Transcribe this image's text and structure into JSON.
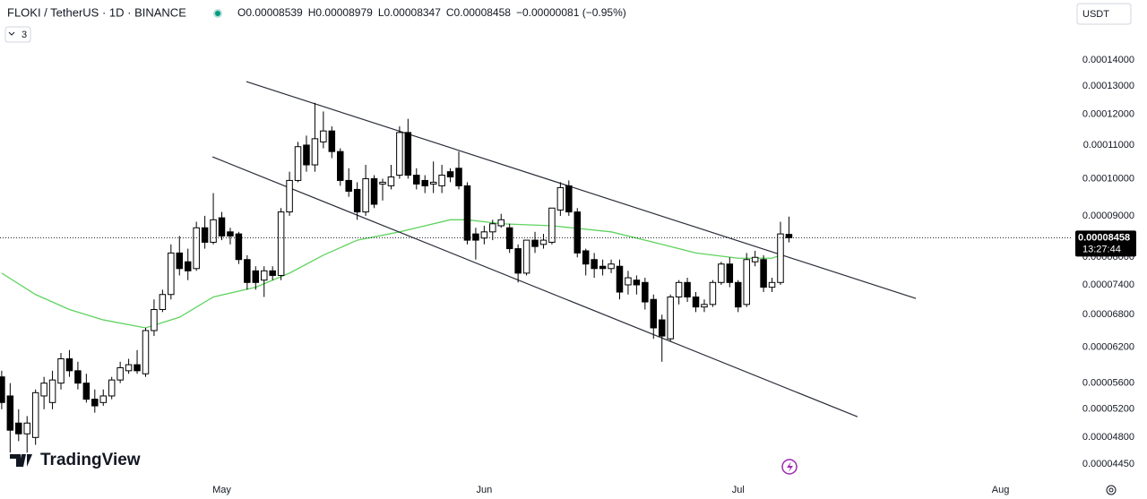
{
  "chart_data": {
    "type": "candlestick",
    "title": "FLOKI / TetherUS · 1D · BINANCE",
    "ohlc_text": [
      "O0.00008539",
      "H0.00008979",
      "L0.00008347",
      "C0.00008458"
    ],
    "change_text": "−0.00000081 (−0.95%)",
    "indicator_count": "3",
    "currency": "USDT",
    "brand": "TradingView",
    "price_label": "0.00008458",
    "countdown": "13:27:44",
    "log_scale": true,
    "grid": false,
    "up_color": "#ffffff",
    "down_color": "#000000",
    "xlim": [
      -0.2,
      126.3
    ],
    "ylim": [
      4.263e-05,
      0.000166
    ],
    "xticks": [
      {
        "value": 26,
        "label": "May"
      },
      {
        "value": 57,
        "label": "Jun"
      },
      {
        "value": 87,
        "label": "Jul"
      },
      {
        "value": 118,
        "label": "Aug"
      }
    ],
    "yticks": [
      {
        "value": 0.00014,
        "label": "0.00014000"
      },
      {
        "value": 0.00013,
        "label": "0.00013000"
      },
      {
        "value": 0.00012,
        "label": "0.00012000"
      },
      {
        "value": 0.00011,
        "label": "0.00011000"
      },
      {
        "value": 0.0001,
        "label": "0.00010000"
      },
      {
        "value": 9e-05,
        "label": "0.00009000"
      },
      {
        "value": 8e-05,
        "label": "0.00008000"
      },
      {
        "value": 7.4e-05,
        "label": "0.00007400"
      },
      {
        "value": 6.8e-05,
        "label": "0.00006800"
      },
      {
        "value": 6.2e-05,
        "label": "0.00006200"
      },
      {
        "value": 5.6e-05,
        "label": "0.00005600"
      },
      {
        "value": 5.2e-05,
        "label": "0.00005200"
      },
      {
        "value": 4.8e-05,
        "label": "0.00004800"
      },
      {
        "value": 4.45e-05,
        "label": "0.00004450"
      }
    ],
    "open": [
      5.7e-05,
      5.4e-05,
      5e-05,
      4.85e-05,
      4.8e-05,
      5.4e-05,
      5.3e-05,
      5.6e-05,
      6e-05,
      5.8e-05,
      5.6e-05,
      5.35e-05,
      5.3e-05,
      5.4e-05,
      5.65e-05,
      5.8e-05,
      5.9e-05,
      5.75e-05,
      6.5e-05,
      6.9e-05,
      7.2e-05,
      8.1e-05,
      7.9e-05,
      7.75e-05,
      8.7e-05,
      8.35e-05,
      8.95e-05,
      8.6e-05,
      8.55e-05,
      7.95e-05,
      7.7e-05,
      7.5e-05,
      7.7e-05,
      7.6e-05,
      9.1e-05,
      9.95e-05,
      0.00011,
      0.000104,
      0.000111,
      0.0001145,
      0.000108,
      9.95e-05,
      9.7e-05,
      9.1e-05,
      0.0001,
      9.85e-05,
      9.8e-05,
      0.000101,
      0.000114,
      0.000101,
      9.95e-05,
      9.85e-05,
      9.8e-05,
      0.000102,
      0.000103,
      9.8e-05,
      8.55e-05,
      8.45e-05,
      8.6e-05,
      8.75e-05,
      8.7e-05,
      8.2e-05,
      7.65e-05,
      8.4e-05,
      8.3e-05,
      8.35e-05,
      9.15e-05,
      9.8e-05,
      9.1e-05,
      8.15e-05,
      7.95e-05,
      7.8e-05,
      7.75e-05,
      7.8e-05,
      7.4e-05,
      7.5e-05,
      7.45e-05,
      7.1e-05,
      6.7e-05,
      6.35e-05,
      7.15e-05,
      7.45e-05,
      7.15e-05,
      6.95e-05,
      7e-05,
      7.45e-05,
      7.85e-05,
      7.45e-05,
      7e-05,
      7.9e-05,
      7.95e-05,
      7.35e-05,
      7.45e-05,
      8.539e-05
    ],
    "high": [
      5.8e-05,
      5.6e-05,
      5.2e-05,
      5.1e-05,
      5.5e-05,
      5.7e-05,
      5.8e-05,
      6.1e-05,
      6.15e-05,
      5.95e-05,
      5.75e-05,
      5.5e-05,
      5.5e-05,
      5.7e-05,
      5.95e-05,
      6e-05,
      6.15e-05,
      6.55e-05,
      7.1e-05,
      7.3e-05,
      8.3e-05,
      8.5e-05,
      8.2e-05,
      8.85e-05,
      9e-05,
      9.6e-05,
      9.1e-05,
      8.7e-05,
      8.6e-05,
      8.05e-05,
      7.8e-05,
      7.8e-05,
      7.8e-05,
      9.2e-05,
      0.000102,
      0.000111,
      0.000113,
      0.000124,
      0.000121,
      0.000116,
      0.000109,
      0.000103,
      9.9e-05,
      0.000104,
      0.000101,
      0.0001,
      0.000104,
      0.000116,
      0.0001185,
      0.000103,
      0.000101,
      0.000105,
      0.000104,
      0.000103,
      0.000108,
      9.9e-05,
      8.7e-05,
      8.75e-05,
      8.9e-05,
      9.05e-05,
      8.8e-05,
      8.3e-05,
      8.4e-05,
      8.6e-05,
      8.55e-05,
      9.2e-05,
      9.9e-05,
      9.95e-05,
      9.2e-05,
      8.2e-05,
      8.1e-05,
      7.95e-05,
      7.95e-05,
      7.95e-05,
      7.7e-05,
      7.6e-05,
      7.55e-05,
      7.2e-05,
      6.8e-05,
      7.2e-05,
      7.5e-05,
      7.55e-05,
      7.25e-05,
      7.1e-05,
      7.5e-05,
      7.9e-05,
      8e-05,
      7.5e-05,
      8.1e-05,
      8.15e-05,
      8.05e-05,
      7.55e-05,
      8.85e-05,
      8.979e-05
    ],
    "low": [
      5.2e-05,
      4.6e-05,
      4.75e-05,
      4.6e-05,
      4.7e-05,
      5.2e-05,
      5.2e-05,
      5.5e-05,
      5.7e-05,
      5.5e-05,
      5.3e-05,
      5.15e-05,
      5.25e-05,
      5.35e-05,
      5.6e-05,
      5.75e-05,
      5.75e-05,
      5.7e-05,
      6.4e-05,
      6.85e-05,
      7.1e-05,
      7.6e-05,
      7.5e-05,
      7.7e-05,
      8.2e-05,
      8.3e-05,
      8.4e-05,
      8.3e-05,
      7.85e-05,
      7.3e-05,
      7.3e-05,
      7.15e-05,
      7.5e-05,
      7.5e-05,
      9e-05,
      9.9e-05,
      0.000102,
      0.000102,
      0.000109,
      0.000106,
      9.8e-05,
      9.5e-05,
      8.9e-05,
      9e-05,
      9.2e-05,
      9.4e-05,
      9.7e-05,
      0.0001,
      0.0001,
      9.7e-05,
      9.6e-05,
      9.6e-05,
      9.6e-05,
      9.9e-05,
      9.7e-05,
      8.3e-05,
      7.95e-05,
      8.3e-05,
      8.4e-05,
      8.7e-05,
      8.1e-05,
      7.45e-05,
      7.6e-05,
      8.1e-05,
      8.2e-05,
      8.3e-05,
      9e-05,
      9e-05,
      8e-05,
      7.6e-05,
      7.55e-05,
      7.6e-05,
      7.65e-05,
      7.1e-05,
      7.2e-05,
      7.2e-05,
      6.9e-05,
      6.35e-05,
      5.95e-05,
      6.3e-05,
      7e-05,
      7.05e-05,
      6.85e-05,
      6.85e-05,
      6.95e-05,
      7.4e-05,
      7.35e-05,
      6.85e-05,
      6.95e-05,
      7.8e-05,
      7.25e-05,
      7.25e-05,
      7.4e-05,
      8.347e-05
    ],
    "close": [
      5.3e-05,
      4.9e-05,
      4.85e-05,
      5e-05,
      5.45e-05,
      5.6e-05,
      5.65e-05,
      6e-05,
      5.8e-05,
      5.6e-05,
      5.35e-05,
      5.25e-05,
      5.4e-05,
      5.65e-05,
      5.85e-05,
      5.9e-05,
      5.8e-05,
      6.5e-05,
      6.9e-05,
      7.2e-05,
      8.1e-05,
      7.75e-05,
      7.7e-05,
      8.7e-05,
      8.35e-05,
      8.9e-05,
      8.5e-05,
      8.5e-05,
      7.95e-05,
      7.45e-05,
      7.45e-05,
      7.7e-05,
      7.6e-05,
      9.1e-05,
      9.95e-05,
      0.0001095,
      0.000104,
      0.000112,
      0.0001145,
      0.000108,
      9.95e-05,
      9.65e-05,
      9.1e-05,
      0.0001,
      9.3e-05,
      9.9e-05,
      0.0001005,
      0.000114,
      0.000101,
      9.85e-05,
      9.8e-05,
      9.9e-05,
      0.000101,
      0.0001005,
      9.8e-05,
      8.4e-05,
      8.4e-05,
      8.6e-05,
      8.8e-05,
      8.9e-05,
      8.2e-05,
      7.65e-05,
      8.4e-05,
      8.25e-05,
      8.4e-05,
      9.2e-05,
      9.75e-05,
      9.1e-05,
      8.1e-05,
      7.85e-05,
      7.75e-05,
      7.75e-05,
      7.85e-05,
      7.25e-05,
      7.55e-05,
      7.4e-05,
      7.05e-05,
      6.55e-05,
      6.4e-05,
      7.15e-05,
      7.45e-05,
      7.15e-05,
      6.95e-05,
      7e-05,
      7.45e-05,
      7.85e-05,
      7.45e-05,
      6.95e-05,
      7.95e-05,
      8e-05,
      7.35e-05,
      7.45e-05,
      8.55e-05,
      8.458e-05
    ],
    "ma": {
      "color": "#5fd35f",
      "x": [
        0,
        4,
        8,
        12,
        17,
        21,
        25,
        30,
        34,
        38,
        42,
        47,
        53,
        55,
        59,
        65,
        72,
        78,
        82,
        87,
        91,
        92
      ],
      "values": [
        7.65e-05,
        7.2e-05,
        6.9e-05,
        6.7e-05,
        6.55e-05,
        6.75e-05,
        7.15e-05,
        7.35e-05,
        7.65e-05,
        8.05e-05,
        8.4e-05,
        8.6e-05,
        8.9e-05,
        8.9e-05,
        8.8e-05,
        8.75e-05,
        8.6e-05,
        8.3e-05,
        8.1e-05,
        7.98e-05,
        7.98e-05,
        8.05e-05
      ]
    },
    "lines": [
      {
        "color": "#2a2e39",
        "x": [
          28.9,
          108.0
        ],
        "values": [
          0.0001317,
          7.12e-05
        ]
      },
      {
        "color": "#2a2e39",
        "x": [
          24.9,
          101.1
        ],
        "values": [
          0.0001064,
          5.09e-05
        ]
      }
    ]
  }
}
